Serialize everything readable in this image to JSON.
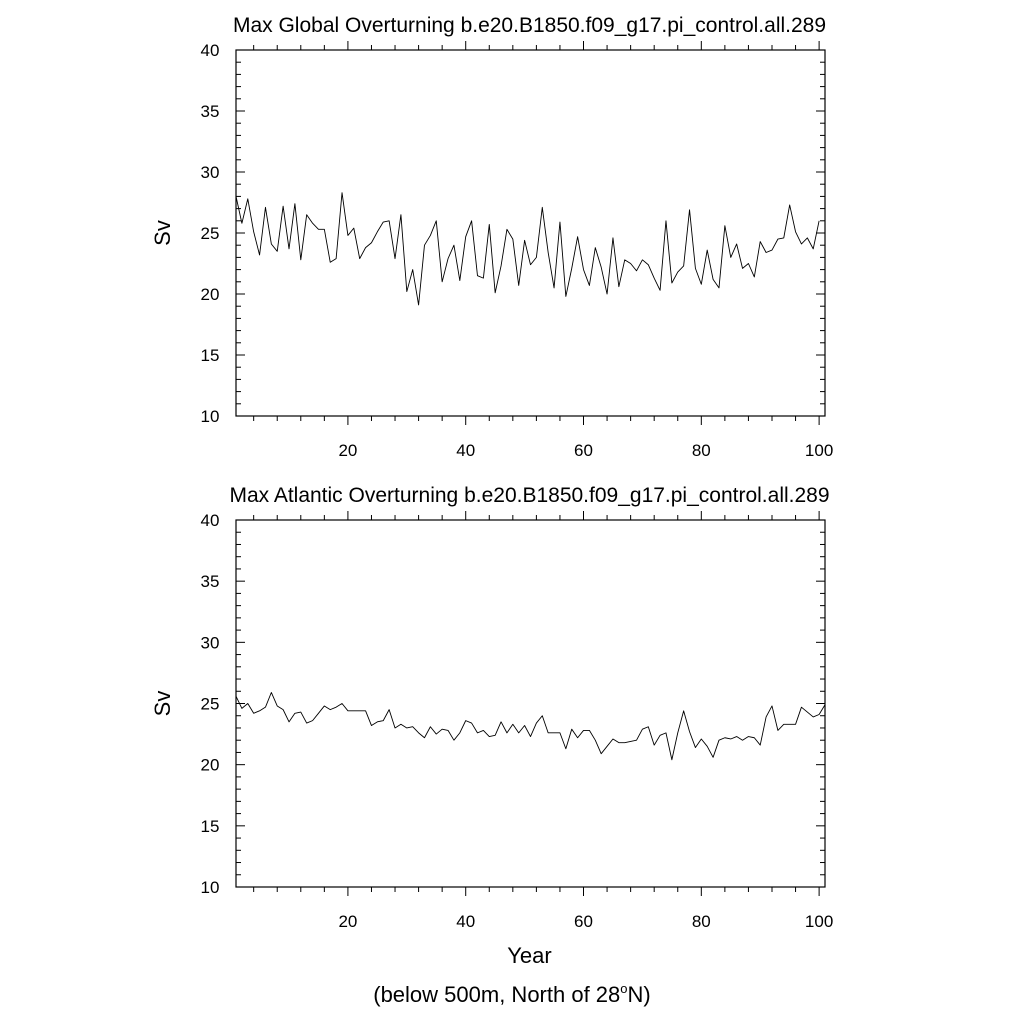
{
  "chart_data": [
    {
      "type": "line",
      "title": "Max Global Overturning b.e20.B1850.f09_g17.pi_control.all.289",
      "xlabel": "",
      "ylabel": "Sv",
      "xlim": [
        1,
        101
      ],
      "ylim": [
        10,
        40
      ],
      "x_ticks": [
        20,
        40,
        60,
        80,
        100
      ],
      "y_ticks": [
        10,
        15,
        20,
        25,
        30,
        35,
        40
      ],
      "grid": false,
      "series": [
        {
          "x_start": 1,
          "x_step": 1,
          "values": [
            28.0,
            25.8,
            27.8,
            25.1,
            23.2,
            27.1,
            24.1,
            23.5,
            27.2,
            23.7,
            27.4,
            22.8,
            26.5,
            25.8,
            25.3,
            25.3,
            22.6,
            22.9,
            28.3,
            24.8,
            25.4,
            22.9,
            23.8,
            24.2,
            25.1,
            25.9,
            26.0,
            22.9,
            26.5,
            20.2,
            22.0,
            19.1,
            24.0,
            24.8,
            26.0,
            21.0,
            22.9,
            24.0,
            21.1,
            24.7,
            26.0,
            21.5,
            21.3,
            25.7,
            20.1,
            22.3,
            25.3,
            24.5,
            20.7,
            24.4,
            22.4,
            23.0,
            27.1,
            23.4,
            20.5,
            25.9,
            19.8,
            22.1,
            24.7,
            22.0,
            20.7,
            23.8,
            22.2,
            20.0,
            24.6,
            20.6,
            22.8,
            22.5,
            21.9,
            22.8,
            22.4,
            21.3,
            20.3,
            26.0,
            20.9,
            21.8,
            22.3,
            26.9,
            22.1,
            20.8,
            23.6,
            21.2,
            20.5,
            25.6,
            23.0,
            24.1,
            22.1,
            22.5,
            21.4,
            24.3,
            23.4,
            23.6,
            24.5,
            24.6,
            27.3,
            25.1,
            24.1,
            24.6,
            23.7,
            26.0
          ]
        }
      ]
    },
    {
      "type": "line",
      "title": "Max Atlantic Overturning b.e20.B1850.f09_g17.pi_control.all.289",
      "xlabel": "Year",
      "ylabel": "Sv",
      "xlim": [
        1,
        101
      ],
      "ylim": [
        10,
        40
      ],
      "x_ticks": [
        20,
        40,
        60,
        80,
        100
      ],
      "y_ticks": [
        10,
        15,
        20,
        25,
        30,
        35,
        40
      ],
      "grid": false,
      "series": [
        {
          "x_start": 1,
          "x_step": 1,
          "values": [
            25.6,
            24.6,
            25.0,
            24.2,
            24.4,
            24.7,
            25.9,
            24.8,
            24.5,
            23.5,
            24.2,
            24.3,
            23.4,
            23.6,
            24.2,
            24.8,
            24.5,
            24.7,
            25.0,
            24.4,
            24.4,
            24.4,
            24.4,
            23.2,
            23.5,
            23.6,
            24.5,
            23.0,
            23.3,
            23.0,
            23.1,
            22.6,
            22.2,
            23.1,
            22.5,
            22.9,
            22.8,
            22.0,
            22.6,
            23.6,
            23.4,
            22.6,
            22.8,
            22.3,
            22.4,
            23.5,
            22.6,
            23.3,
            22.6,
            23.2,
            22.3,
            23.4,
            24.0,
            22.6,
            22.6,
            22.6,
            21.3,
            22.9,
            22.2,
            22.8,
            22.8,
            22.0,
            20.9,
            21.5,
            22.1,
            21.8,
            21.8,
            21.9,
            22.0,
            22.9,
            23.1,
            21.6,
            22.4,
            22.6,
            20.4,
            22.6,
            24.4,
            22.7,
            21.4,
            22.1,
            21.5,
            20.6,
            22.0,
            22.2,
            22.1,
            22.3,
            22.0,
            22.3,
            22.2,
            21.6,
            23.9,
            24.8,
            22.8,
            23.3,
            23.3,
            23.3,
            24.7,
            24.3,
            23.9,
            24.1,
            24.9
          ]
        }
      ]
    }
  ],
  "caption": {
    "prefix": "(below 500m, North of 28",
    "superscript": "o",
    "suffix": "N)"
  }
}
